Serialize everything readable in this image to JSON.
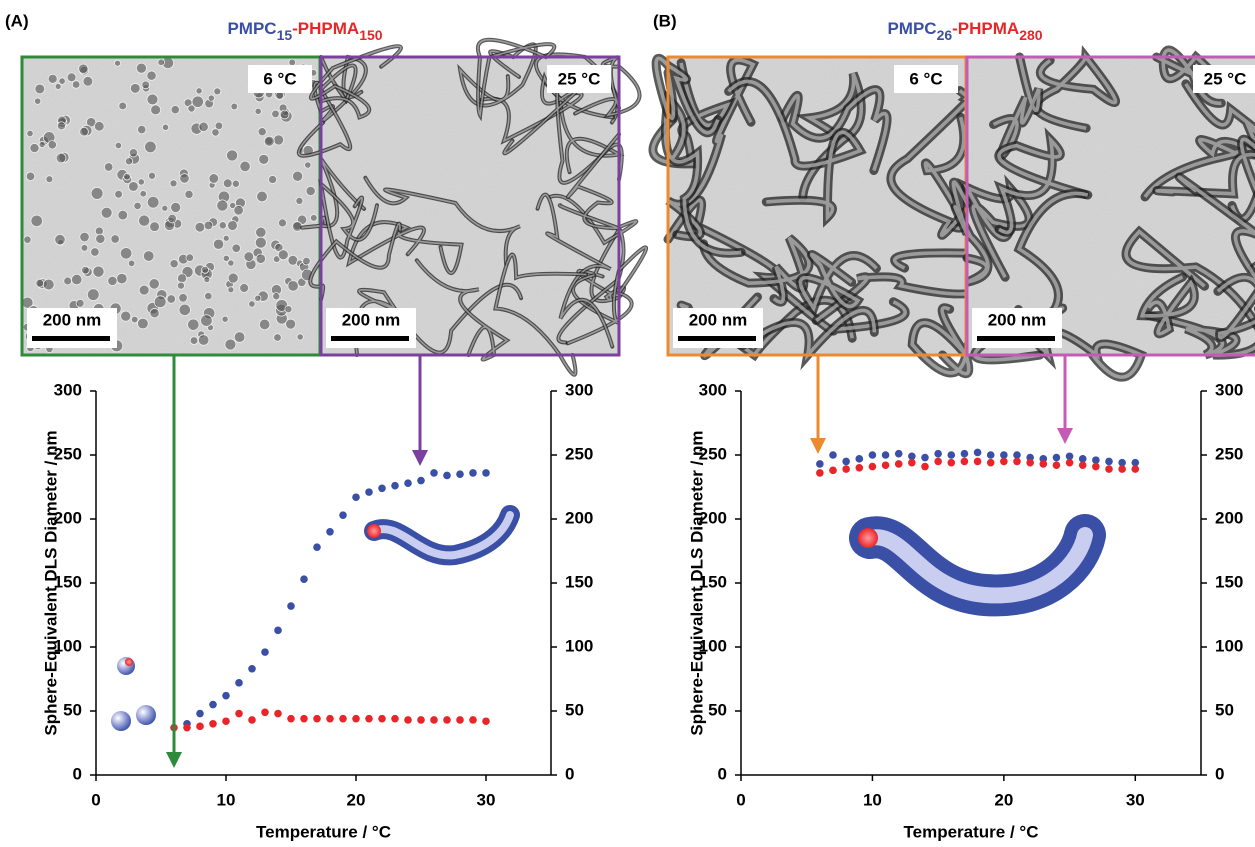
{
  "chart_data": [
    {
      "type": "scatter",
      "panel_label": "(A)",
      "title_parts": [
        {
          "text": "PMPC",
          "color": "#3a4fa6",
          "sub": false
        },
        {
          "text": "15",
          "color": "#3a4fa6",
          "sub": true
        },
        {
          "text": "-PHPMA",
          "color": "#e8262a",
          "sub": false
        },
        {
          "text": "150",
          "color": "#e8262a",
          "sub": true
        }
      ],
      "images": [
        {
          "label": "6 °C",
          "scale_bar": "200 nm",
          "border": "#2e8b3a",
          "morphology": "spheres"
        },
        {
          "label": "25 °C",
          "scale_bar": "200 nm",
          "border": "#7b3fa0",
          "morphology": "worms"
        }
      ],
      "xlabel": "Temperature / °C",
      "ylabel": "Sphere-Equivalent DLS Diameter / nm",
      "x": [
        6,
        7,
        8,
        9,
        10,
        11,
        12,
        13,
        14,
        15,
        16,
        17,
        18,
        19,
        20,
        21,
        22,
        23,
        24,
        25,
        26,
        27,
        28,
        29,
        30
      ],
      "series": [
        {
          "color": "#3a4fa6",
          "values": [
            null,
            40,
            48,
            55,
            62,
            72,
            83,
            96,
            113,
            132,
            153,
            178,
            190,
            203,
            217,
            221,
            224,
            226,
            228,
            230,
            236,
            234,
            235,
            236,
            236
          ]
        },
        {
          "color": "#e8262a",
          "values": [
            37,
            37,
            38,
            40,
            42,
            48,
            43,
            49,
            48,
            44,
            44,
            44,
            44,
            44,
            44,
            44,
            44,
            44,
            43,
            43,
            43,
            43,
            43,
            43,
            42
          ]
        }
      ],
      "xlim": [
        0,
        35
      ],
      "ylim": [
        0,
        300
      ],
      "xticks": [
        0,
        10,
        20,
        30
      ],
      "yticks": [
        0,
        50,
        100,
        150,
        200,
        250,
        300
      ]
    },
    {
      "type": "scatter",
      "panel_label": "(B)",
      "title_parts": [
        {
          "text": "PMPC",
          "color": "#3a4fa6",
          "sub": false
        },
        {
          "text": "26",
          "color": "#3a4fa6",
          "sub": true
        },
        {
          "text": "-PHPMA",
          "color": "#e8262a",
          "sub": false
        },
        {
          "text": "280",
          "color": "#e8262a",
          "sub": true
        }
      ],
      "images": [
        {
          "label": "6 °C",
          "scale_bar": "200 nm",
          "border": "#ee8a2e",
          "morphology": "worms"
        },
        {
          "label": "25 °C",
          "scale_bar": "200 nm",
          "border": "#c45bb5",
          "morphology": "worms"
        }
      ],
      "xlabel": "Temperature / °C",
      "ylabel": "Sphere-Equivalent DLS Diameter / nm",
      "x": [
        6,
        7,
        8,
        9,
        10,
        11,
        12,
        13,
        14,
        15,
        16,
        17,
        18,
        19,
        20,
        21,
        22,
        23,
        24,
        25,
        26,
        27,
        28,
        29,
        30
      ],
      "series": [
        {
          "color": "#3a4fa6",
          "values": [
            243,
            250,
            245,
            247,
            250,
            250,
            251,
            249,
            248,
            251,
            250,
            251,
            252,
            250,
            250,
            250,
            248,
            247,
            248,
            249,
            247,
            246,
            245,
            244,
            244
          ]
        },
        {
          "color": "#e8262a",
          "values": [
            236,
            238,
            239,
            240,
            241,
            242,
            243,
            244,
            241,
            245,
            244,
            245,
            245,
            244,
            245,
            245,
            244,
            243,
            242,
            244,
            242,
            241,
            239,
            239,
            239
          ]
        }
      ],
      "xlim": [
        0,
        35
      ],
      "ylim": [
        0,
        300
      ],
      "xticks": [
        0,
        10,
        20,
        30
      ],
      "yticks": [
        0,
        50,
        100,
        150,
        200,
        250,
        300
      ]
    }
  ]
}
